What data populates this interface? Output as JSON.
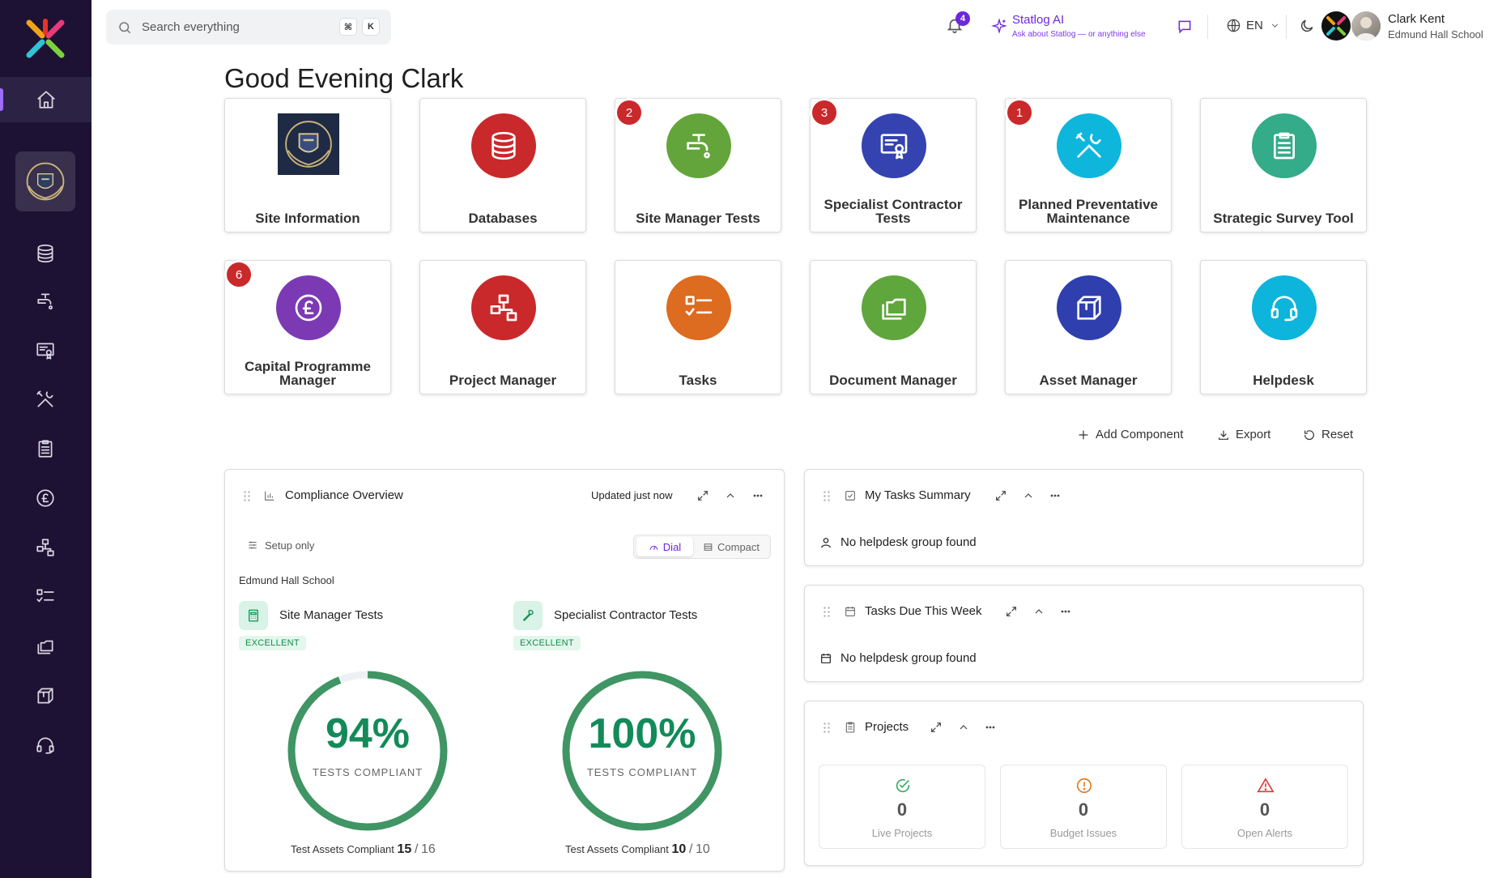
{
  "search": {
    "placeholder": "Search everything",
    "kbd1": "⌘",
    "kbd2": "K"
  },
  "notifications": {
    "count": "4"
  },
  "ai": {
    "title": "Statlog AI",
    "subtitle": "Ask about Statlog — or anything else"
  },
  "language": {
    "code": "EN"
  },
  "user": {
    "name": "Clark Kent",
    "school": "Edmund Hall School"
  },
  "greeting": "Good Evening Clark",
  "tiles": [
    {
      "label": "Site Information",
      "badge": ""
    },
    {
      "label": "Databases",
      "badge": "",
      "color": "#c9292b"
    },
    {
      "label": "Site Manager Tests",
      "badge": "2",
      "color": "#64a53b"
    },
    {
      "label": "Specialist Contractor Tests",
      "badge": "3",
      "color": "#3443b0"
    },
    {
      "label": "Planned Preventative Maintenance",
      "badge": "1",
      "color": "#0fb6dc"
    },
    {
      "label": "Strategic Survey Tool",
      "badge": "",
      "color": "#34ab89"
    },
    {
      "label": "Capital Programme Manager",
      "badge": "6",
      "color": "#7b3ab4"
    },
    {
      "label": "Project Manager",
      "badge": "",
      "color": "#c9292b"
    },
    {
      "label": "Tasks",
      "badge": "",
      "color": "#dd6b20"
    },
    {
      "label": "Document Manager",
      "badge": "",
      "color": "#5fa63d"
    },
    {
      "label": "Asset Manager",
      "badge": "",
      "color": "#2f3fae"
    },
    {
      "label": "Helpdesk",
      "badge": "",
      "color": "#0db4dc"
    }
  ],
  "actions": {
    "add": "Add Component",
    "export": "Export",
    "reset": "Reset"
  },
  "compliance": {
    "title": "Compliance Overview",
    "updated": "Updated just now",
    "setup": "Setup only",
    "view_dial": "Dial",
    "view_compact": "Compact",
    "school": "Edmund Hall School",
    "items": [
      {
        "name": "Site Manager Tests",
        "rating": "EXCELLENT",
        "percent": "94%",
        "percent_value": 94,
        "caption": "TESTS COMPLIANT",
        "footer_label": "Test Assets Compliant",
        "compliant": "15",
        "total": "16"
      },
      {
        "name": "Specialist Contractor Tests",
        "rating": "EXCELLENT",
        "percent": "100%",
        "percent_value": 100,
        "caption": "TESTS COMPLIANT",
        "footer_label": "Test Assets Compliant",
        "compliant": "10",
        "total": "10"
      }
    ]
  },
  "my_tasks": {
    "title": "My Tasks Summary",
    "message": "No helpdesk group found"
  },
  "tasks_week": {
    "title": "Tasks Due This Week",
    "message": "No helpdesk group found"
  },
  "projects": {
    "title": "Projects",
    "stats": [
      {
        "value": "0",
        "label": "Live Projects",
        "color": "#3aa86a"
      },
      {
        "value": "0",
        "label": "Budget Issues",
        "color": "#e07a1f"
      },
      {
        "value": "0",
        "label": "Open Alerts",
        "color": "#d93b3b"
      }
    ]
  }
}
